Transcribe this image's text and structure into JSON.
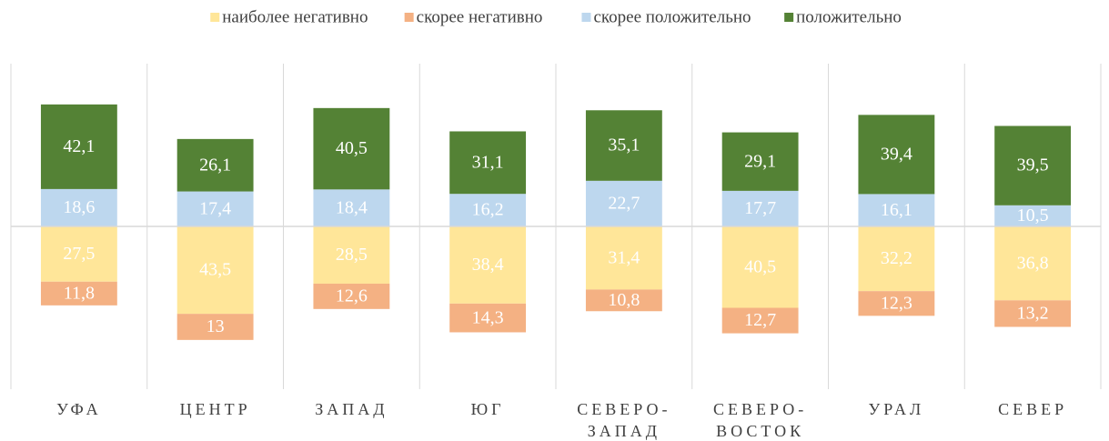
{
  "chart_data": {
    "type": "diverging_stacked_bar",
    "categories": [
      "УФА",
      "ЦЕНТР",
      "ЗАПАД",
      "ЮГ",
      "СЕВЕРО-ЗАПАД",
      "СЕВЕРО-ВОСТОК",
      "УРАЛ",
      "СЕВЕР"
    ],
    "series": [
      {
        "name": "наиболее негативно",
        "color": "#ffe699",
        "values": [
          -27.5,
          -43.5,
          -28.5,
          -38.4,
          -31.4,
          -40.5,
          -32.2,
          -36.8
        ],
        "value_labels": [
          "27,5",
          "43,5",
          "28,5",
          "38,4",
          "31,4",
          "40,5",
          "32,2",
          "36,8"
        ]
      },
      {
        "name": "скорее негативно",
        "color": "#f4b183",
        "values": [
          -11.8,
          -13,
          -12.6,
          -14.3,
          -10.8,
          -12.7,
          -12.3,
          -13.2
        ],
        "value_labels": [
          "11,8",
          "13",
          "12,6",
          "14,3",
          "10,8",
          "12,7",
          "12,3",
          "13,2"
        ]
      },
      {
        "name": "скорее положительно",
        "color": "#bdd7ee",
        "values": [
          18.6,
          17.4,
          18.4,
          16.2,
          22.7,
          17.7,
          16.1,
          10.5
        ],
        "value_labels": [
          "18,6",
          "17,4",
          "18,4",
          "16,2",
          "22,7",
          "17,7",
          "16,1",
          "10,5"
        ]
      },
      {
        "name": "положительно",
        "color": "#548235",
        "values": [
          42.1,
          26.1,
          40.5,
          31.1,
          35.1,
          29.1,
          39.4,
          39.5
        ],
        "value_labels": [
          "42,1",
          "26,1",
          "40,5",
          "31,1",
          "35,1",
          "29,1",
          "39,4",
          "39,5"
        ]
      }
    ],
    "ylim": [
      -81,
      81
    ],
    "legend": "top"
  }
}
